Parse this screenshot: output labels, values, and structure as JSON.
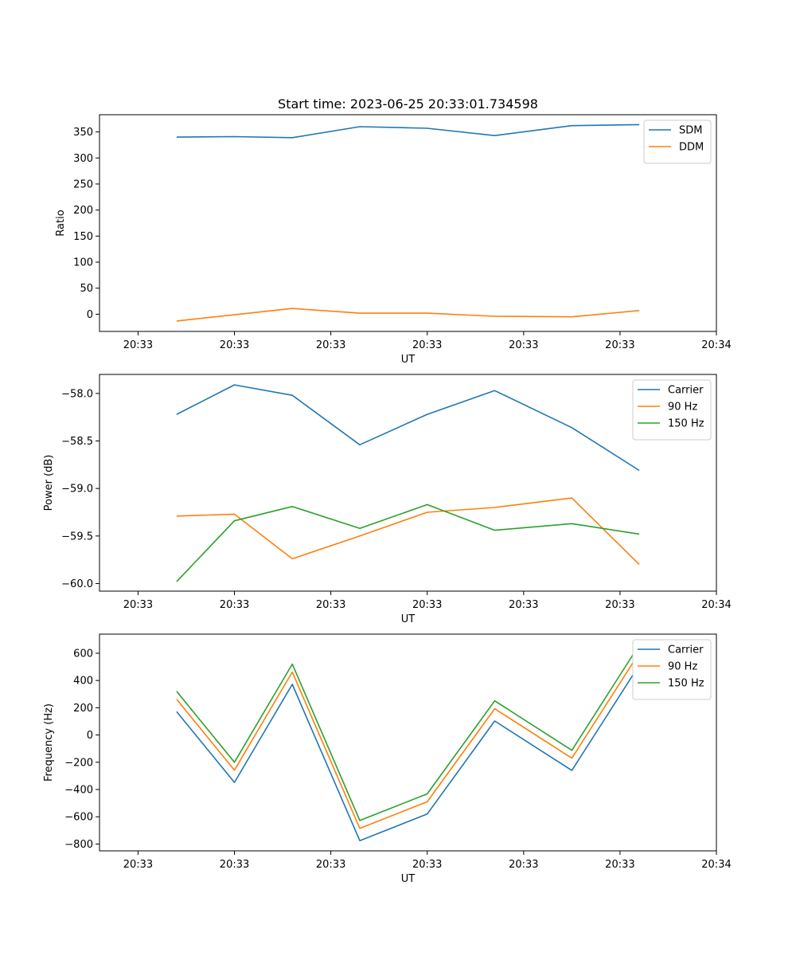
{
  "chart_data": [
    {
      "type": "line",
      "title": "Start time: 2023-06-25 20:33:01.734598",
      "xlabel": "UT",
      "ylabel": "Ratio",
      "x": [
        0.4,
        1.0,
        1.6,
        2.3,
        3.0,
        3.7,
        4.5,
        5.2
      ],
      "xlim": [
        -0.4,
        6.0
      ],
      "x_ticks": [
        0,
        1,
        2,
        3,
        4,
        5,
        6
      ],
      "x_tick_labels": [
        "20:33",
        "20:33",
        "20:33",
        "20:33",
        "20:33",
        "20:33",
        "20:34"
      ],
      "ylim": [
        -33,
        383
      ],
      "y_ticks": [
        0,
        50,
        100,
        150,
        200,
        250,
        300,
        350
      ],
      "y_tick_labels": [
        "0",
        "50",
        "100",
        "150",
        "200",
        "250",
        "300",
        "350"
      ],
      "legend": "upper right",
      "series": [
        {
          "name": "SDM",
          "color": "#1f77b4",
          "values": [
            340,
            341,
            339,
            360,
            357,
            343,
            362,
            364
          ]
        },
        {
          "name": "DDM",
          "color": "#ff7f0e",
          "values": [
            -13,
            -1,
            11,
            2,
            2,
            -4,
            -5,
            7
          ]
        }
      ]
    },
    {
      "type": "line",
      "title": "",
      "xlabel": "UT",
      "ylabel": "Power (dB)",
      "x": [
        0.4,
        1.0,
        1.6,
        2.3,
        3.0,
        3.7,
        4.5,
        5.2
      ],
      "xlim": [
        -0.4,
        6.0
      ],
      "x_ticks": [
        0,
        1,
        2,
        3,
        4,
        5,
        6
      ],
      "x_tick_labels": [
        "20:33",
        "20:33",
        "20:33",
        "20:33",
        "20:33",
        "20:33",
        "20:34"
      ],
      "ylim": [
        -60.08,
        -57.8
      ],
      "y_ticks": [
        -60.0,
        -59.5,
        -59.0,
        -58.5,
        -58.0
      ],
      "y_tick_labels": [
        "−60.0",
        "−59.5",
        "−59.0",
        "−58.5",
        "−58.0"
      ],
      "legend": "upper right",
      "series": [
        {
          "name": "Carrier",
          "color": "#1f77b4",
          "values": [
            -58.22,
            -57.91,
            -58.02,
            -58.54,
            -58.22,
            -57.97,
            -58.36,
            -58.81
          ]
        },
        {
          "name": "90 Hz",
          "color": "#ff7f0e",
          "values": [
            -59.29,
            -59.27,
            -59.74,
            -59.5,
            -59.25,
            -59.2,
            -59.1,
            -59.8
          ]
        },
        {
          "name": "150 Hz",
          "color": "#2ca02c",
          "values": [
            -59.98,
            -59.34,
            -59.19,
            -59.42,
            -59.17,
            -59.44,
            -59.37,
            -59.48
          ]
        }
      ]
    },
    {
      "type": "line",
      "title": "",
      "xlabel": "UT",
      "ylabel": "Frequency (Hz)",
      "x": [
        0.4,
        1.0,
        1.6,
        2.3,
        3.0,
        3.7,
        4.5,
        5.2
      ],
      "xlim": [
        -0.4,
        6.0
      ],
      "x_ticks": [
        0,
        1,
        2,
        3,
        4,
        5,
        6
      ],
      "x_tick_labels": [
        "20:33",
        "20:33",
        "20:33",
        "20:33",
        "20:33",
        "20:33",
        "20:34"
      ],
      "ylim": [
        -850,
        740
      ],
      "y_ticks": [
        -800,
        -600,
        -400,
        -200,
        0,
        200,
        400,
        600
      ],
      "y_tick_labels": [
        "−800",
        "−600",
        "−400",
        "−200",
        "0",
        "200",
        "400",
        "600"
      ],
      "legend": "upper right",
      "series": [
        {
          "name": "Carrier",
          "color": "#1f77b4",
          "values": [
            172,
            -348,
            372,
            -775,
            -580,
            103,
            -260,
            513
          ]
        },
        {
          "name": "90 Hz",
          "color": "#ff7f0e",
          "values": [
            262,
            -258,
            462,
            -685,
            -490,
            193,
            -170,
            603
          ]
        },
        {
          "name": "150 Hz",
          "color": "#2ca02c",
          "values": [
            320,
            -200,
            520,
            -627,
            -432,
            251,
            -112,
            661
          ]
        }
      ]
    }
  ]
}
